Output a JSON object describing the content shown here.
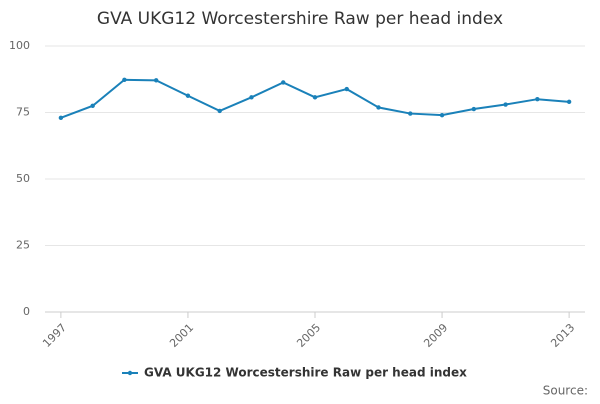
{
  "chart_data": {
    "type": "line",
    "title": "GVA UKG12 Worcestershire Raw per head index",
    "x": [
      1997,
      1998,
      1999,
      2000,
      2001,
      2002,
      2003,
      2004,
      2005,
      2006,
      2007,
      2008,
      2009,
      2010,
      2011,
      2012,
      2013
    ],
    "series": [
      {
        "name": "GVA UKG12 Worcestershire Raw per head index",
        "color": "#1a81b9",
        "values": [
          73,
          77.5,
          87.3,
          87.1,
          81.3,
          75.6,
          80.7,
          86.3,
          80.7,
          83.8,
          76.9,
          74.6,
          74,
          76.3,
          78,
          80,
          79
        ]
      }
    ],
    "xlim": [
      1996.5,
      2013.5
    ],
    "xticks": [
      1997,
      2001,
      2005,
      2009,
      2013
    ],
    "ylim": [
      0,
      100
    ],
    "yticks": [
      0,
      25,
      50,
      75,
      100
    ],
    "grid": true,
    "legend": "bottom",
    "source": "Source:"
  }
}
